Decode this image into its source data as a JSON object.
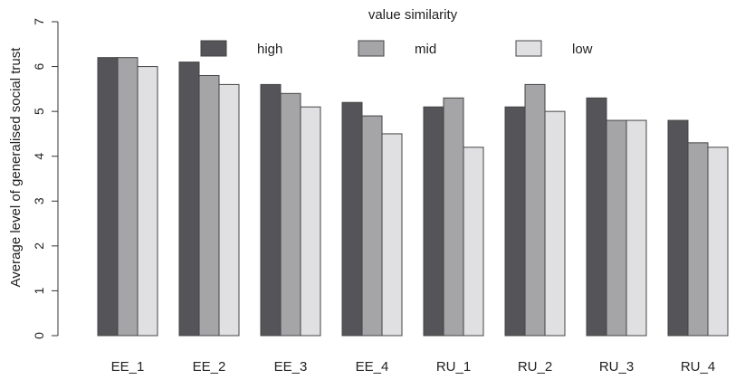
{
  "chart_data": {
    "type": "bar",
    "title": "",
    "xlabel": "",
    "ylabel": "Average level of generalised social trust",
    "legend_title": "value similarity",
    "legend_position": "top-center",
    "grid": false,
    "ylim": [
      0,
      7
    ],
    "yticks": [
      0,
      1,
      2,
      3,
      4,
      5,
      6,
      7
    ],
    "categories": [
      "EE_1",
      "EE_2",
      "EE_3",
      "EE_4",
      "RU_1",
      "RU_2",
      "RU_3",
      "RU_4"
    ],
    "series": [
      {
        "name": "high",
        "color": "#555559",
        "values": [
          6.2,
          6.1,
          5.6,
          5.2,
          5.1,
          5.1,
          5.3,
          4.8
        ]
      },
      {
        "name": "mid",
        "color": "#a5a5a8",
        "values": [
          6.2,
          5.8,
          5.4,
          4.9,
          5.3,
          5.6,
          4.8,
          4.3
        ]
      },
      {
        "name": "low",
        "color": "#e0e0e2",
        "values": [
          6.0,
          5.6,
          5.1,
          4.5,
          4.2,
          5.0,
          4.8,
          4.2
        ]
      }
    ]
  }
}
